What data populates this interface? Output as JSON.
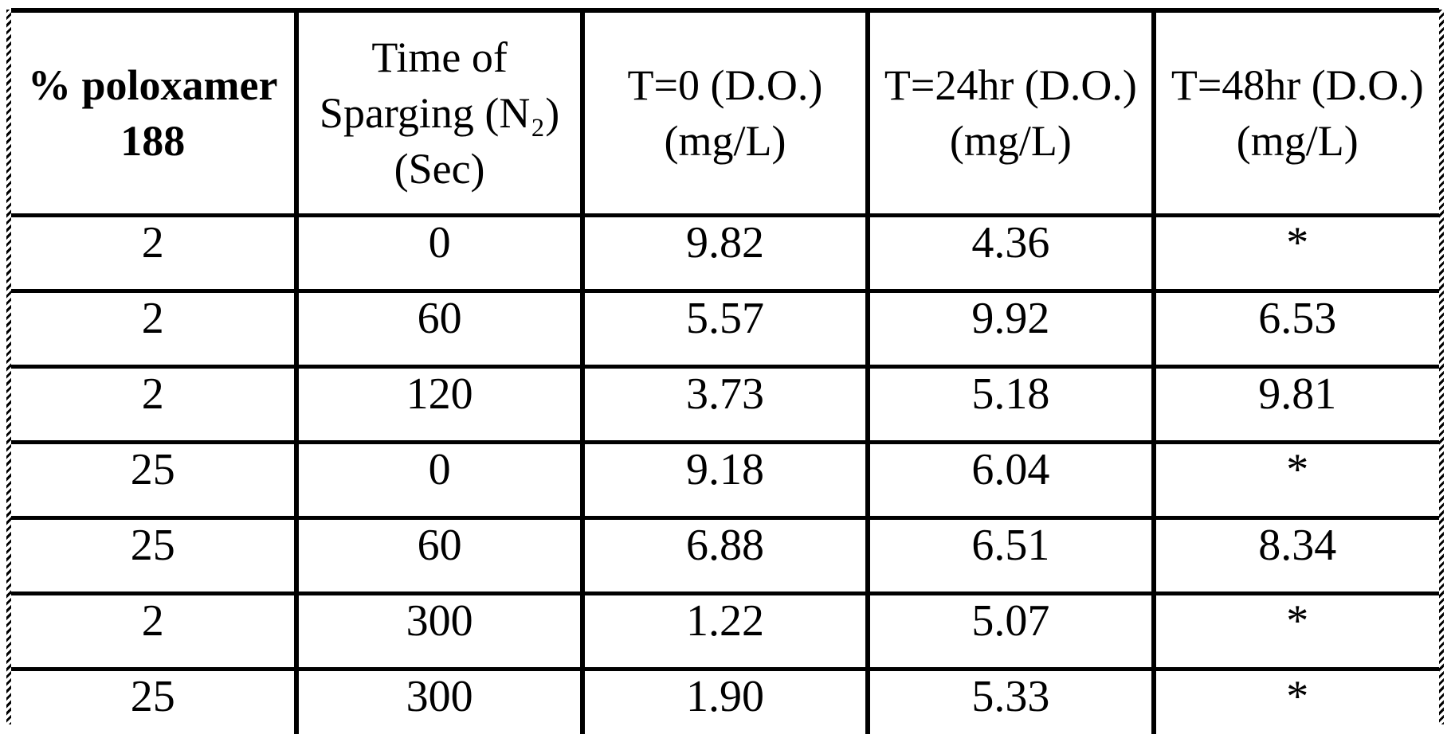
{
  "document": {
    "kind": "scanned patent table",
    "colors": {
      "background": "#ffffff",
      "text": "#000000",
      "border": "#000000"
    }
  },
  "table": {
    "columns": [
      {
        "lines": [
          "% poloxamer",
          "188"
        ]
      },
      {
        "lines": [
          "Time of",
          "Sparging (N₂)",
          "(Sec)"
        ]
      },
      {
        "lines": [
          "T=0 (D.O.)",
          "(mg/L)"
        ]
      },
      {
        "lines": [
          "T=24hr (D.O.)",
          "(mg/L)"
        ]
      },
      {
        "lines": [
          "T=48hr (D.O.)",
          "(mg/L)"
        ]
      }
    ],
    "rows": [
      [
        "2",
        "0",
        "9.82",
        "4.36",
        "*"
      ],
      [
        "2",
        "60",
        "5.57",
        "9.92",
        "6.53"
      ],
      [
        "2",
        "120",
        "3.73",
        "5.18",
        "9.81"
      ],
      [
        "25",
        "0",
        "9.18",
        "6.04",
        "*"
      ],
      [
        "25",
        "60",
        "6.88",
        "6.51",
        "8.34"
      ],
      [
        "2",
        "300",
        "1.22",
        "5.07",
        "*"
      ],
      [
        "25",
        "300",
        "1.90",
        "5.33",
        "*"
      ]
    ]
  }
}
